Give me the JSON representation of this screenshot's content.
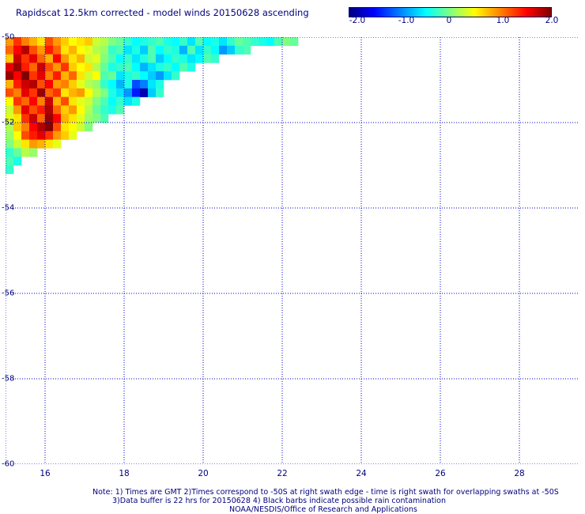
{
  "title": "Rapidscat 12.5km corrected - model winds 20150628 ascending",
  "colorbar": {
    "ticks": [
      "-2.0",
      "-1.0",
      "0",
      "1.0",
      "2.0"
    ],
    "colors": [
      "#00007f",
      "#0000ff",
      "#0080ff",
      "#00ffff",
      "#80ff80",
      "#ffff00",
      "#ff8000",
      "#ff0000",
      "#800000"
    ],
    "range": [
      -2.0,
      2.0
    ]
  },
  "chart_data": {
    "type": "heatmap",
    "title": "Rapidscat 12.5km corrected - model winds 20150628 ascending",
    "xlabel": "",
    "ylabel": "",
    "x_ticks": [
      "16",
      "18",
      "20",
      "22",
      "24",
      "26",
      "28"
    ],
    "y_ticks": [
      "-50",
      "-52",
      "-54",
      "-56",
      "-58",
      "-60"
    ],
    "xlim": [
      15,
      29.5
    ],
    "ylim": [
      -60,
      -50
    ],
    "grid": true,
    "cell_size_deg": 0.2,
    "swath_edge_note": "data confined to a triangular swath in the upper-left corner",
    "values": [
      [
        0.9,
        1.3,
        1.0,
        0.8,
        0.6,
        1.2,
        0.9,
        0.7,
        0.5,
        0.6,
        0.7,
        0.3,
        0.2,
        0.0,
        -0.1,
        -0.3,
        -0.5,
        -0.4,
        -0.3,
        -0.2,
        -0.4,
        -0.5,
        -0.3,
        -0.6,
        -0.2,
        -0.5,
        -0.4,
        -0.6,
        -0.3,
        -0.1,
        -0.2,
        -0.3,
        -0.4,
        -0.5,
        -0.2,
        0.0,
        -0.1
      ],
      [
        1.1,
        1.5,
        1.8,
        1.2,
        0.9,
        1.4,
        1.1,
        0.6,
        0.8,
        0.5,
        0.4,
        0.2,
        0.1,
        -0.3,
        -0.2,
        -0.6,
        -0.4,
        -0.7,
        -0.2,
        -0.5,
        -0.3,
        -0.4,
        -0.8,
        -0.2,
        -0.6,
        -0.3,
        -0.5,
        -0.9,
        -0.7,
        -0.3,
        -0.2
      ],
      [
        0.7,
        1.7,
        1.3,
        1.6,
        1.1,
        0.8,
        1.5,
        0.9,
        0.6,
        0.8,
        0.3,
        0.4,
        0.0,
        -0.2,
        -0.5,
        -0.3,
        -0.6,
        -0.4,
        -0.2,
        -0.7,
        -0.5,
        -0.3,
        -0.4,
        -0.6,
        -0.5,
        -0.2,
        -0.3
      ],
      [
        1.6,
        1.9,
        1.4,
        1.1,
        1.7,
        1.2,
        0.9,
        1.3,
        0.7,
        0.5,
        0.6,
        0.2,
        -0.1,
        -0.4,
        -0.3,
        -0.2,
        -0.5,
        -0.8,
        -0.6,
        -0.4,
        -0.3,
        -0.5,
        -0.2,
        -0.4
      ],
      [
        1.9,
        1.5,
        2.0,
        1.3,
        1.6,
        1.0,
        1.4,
        0.8,
        1.1,
        0.6,
        0.3,
        0.5,
        -0.2,
        -0.1,
        -0.6,
        -0.4,
        -0.3,
        -0.5,
        -0.7,
        -0.9,
        -0.6,
        -0.3
      ],
      [
        0.8,
        1.4,
        1.7,
        1.8,
        1.2,
        1.5,
        0.9,
        1.0,
        0.7,
        0.4,
        0.2,
        0.1,
        -0.3,
        -0.5,
        -0.8,
        -0.4,
        -1.2,
        -1.0,
        -0.6,
        -0.4
      ],
      [
        1.2,
        1.0,
        1.6,
        1.3,
        1.9,
        1.1,
        1.3,
        0.6,
        0.8,
        0.9,
        0.5,
        0.2,
        0.0,
        -0.4,
        -0.6,
        -0.9,
        -1.4,
        -1.8,
        -0.7,
        -0.3
      ],
      [
        0.5,
        1.3,
        1.1,
        1.5,
        1.0,
        1.7,
        0.8,
        1.2,
        0.6,
        0.4,
        0.3,
        0.0,
        -0.2,
        -0.5,
        -0.3,
        -0.6,
        -0.4
      ],
      [
        0.3,
        0.9,
        1.6,
        1.2,
        1.4,
        1.8,
        1.1,
        0.7,
        0.9,
        0.5,
        0.2,
        -0.1,
        -0.3,
        -0.4,
        -0.2
      ],
      [
        0.4,
        0.6,
        1.3,
        1.7,
        1.1,
        1.9,
        1.5,
        0.8,
        0.6,
        0.4,
        0.1,
        0.0,
        -0.2
      ],
      [
        0.2,
        0.7,
        1.0,
        1.5,
        1.8,
        2.0,
        1.2,
        0.6,
        0.5,
        0.3,
        0.0
      ],
      [
        0.1,
        0.5,
        1.2,
        1.4,
        1.6,
        1.3,
        0.9,
        0.7,
        0.4
      ],
      [
        0.0,
        0.3,
        0.6,
        0.9,
        0.8,
        0.6,
        0.4
      ],
      [
        -0.3,
        -0.1,
        0.2,
        0.1
      ],
      [
        -0.2,
        -0.4
      ],
      [
        -0.3
      ]
    ]
  },
  "notes": [
    "Note: 1) Times are GMT 2)Times correspond to -50S at right swath edge - time is right swath for overlapping swaths at -50S",
    "3)Data buffer is 22 hrs for 20150628 4) Black barbs indicate possible rain contamination",
    "NOAA/NESDIS/Office of Research and Applications"
  ]
}
